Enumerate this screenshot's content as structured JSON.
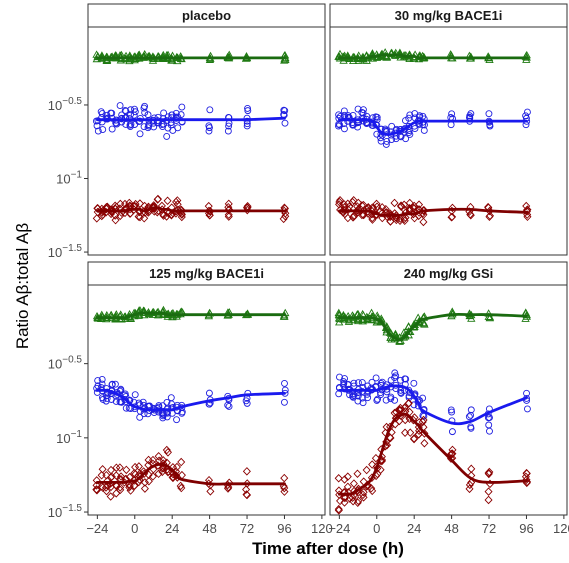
{
  "chart_data": {
    "type": "scatter",
    "xlabel": "Time after dose (h)",
    "ylabel": "Ratio Aβ:total Aβ",
    "x_ticks": [
      -24,
      0,
      24,
      48,
      72,
      96,
      120
    ],
    "x_tick_labels": [
      "−24",
      "0",
      "24",
      "48",
      "72",
      "96",
      "120"
    ],
    "xlim": [
      -30,
      122
    ],
    "y_scale": "log10",
    "ylim_log10": [
      -1.52,
      0.03
    ],
    "y_ticks": [
      {
        "log10": -0.5,
        "base": "10",
        "exp": "−0.5"
      },
      {
        "log10": -1.0,
        "base": "10",
        "exp": "−1"
      },
      {
        "log10": -1.5,
        "base": "10",
        "exp": "−1.5"
      }
    ],
    "grid": false,
    "legend": "none",
    "series_styles": [
      {
        "key": "green",
        "marker": "triangle",
        "color": "#1f7a12",
        "line_color": "#1a6b10"
      },
      {
        "key": "blue",
        "marker": "circle",
        "color": "#1f1fe0",
        "line_color": "#1a1aee"
      },
      {
        "key": "red",
        "marker": "diamond",
        "color": "#8b0000",
        "line_color": "#7f0000"
      }
    ],
    "timepoints": [
      -24,
      -21,
      -18,
      -15,
      -12,
      -9,
      -6,
      -3,
      0,
      3,
      6,
      9,
      12,
      15,
      18,
      21,
      24,
      27,
      30,
      48,
      60,
      72,
      96
    ],
    "panels": [
      {
        "title": "placebo",
        "series": [
          {
            "key": "green",
            "values": [
              -0.18,
              -0.18,
              -0.18,
              -0.18,
              -0.18,
              -0.18,
              -0.18,
              -0.18,
              -0.18,
              -0.18,
              -0.18,
              -0.18,
              -0.18,
              -0.18,
              -0.18,
              -0.18,
              -0.18,
              -0.18,
              -0.18,
              -0.18,
              -0.18,
              -0.18,
              -0.18
            ],
            "spread": 0.03
          },
          {
            "key": "blue",
            "values": [
              -0.6,
              -0.6,
              -0.6,
              -0.6,
              -0.6,
              -0.6,
              -0.6,
              -0.6,
              -0.6,
              -0.6,
              -0.6,
              -0.6,
              -0.6,
              -0.6,
              -0.6,
              -0.6,
              -0.6,
              -0.6,
              -0.6,
              -0.6,
              -0.6,
              -0.6,
              -0.59
            ],
            "spread": 0.12
          },
          {
            "key": "red",
            "values": [
              -1.22,
              -1.22,
              -1.22,
              -1.22,
              -1.22,
              -1.22,
              -1.22,
              -1.21,
              -1.21,
              -1.21,
              -1.22,
              -1.21,
              -1.2,
              -1.2,
              -1.21,
              -1.21,
              -1.22,
              -1.22,
              -1.22,
              -1.22,
              -1.22,
              -1.22,
              -1.22
            ],
            "spread": 0.09
          }
        ]
      },
      {
        "title": "30 mg/kg BACE1i",
        "series": [
          {
            "key": "green",
            "values": [
              -0.18,
              -0.18,
              -0.18,
              -0.18,
              -0.18,
              -0.18,
              -0.18,
              -0.17,
              -0.17,
              -0.16,
              -0.16,
              -0.16,
              -0.16,
              -0.16,
              -0.17,
              -0.17,
              -0.17,
              -0.18,
              -0.18,
              -0.18,
              -0.18,
              -0.18,
              -0.18
            ],
            "spread": 0.03
          },
          {
            "key": "blue",
            "values": [
              -0.6,
              -0.6,
              -0.6,
              -0.6,
              -0.6,
              -0.6,
              -0.6,
              -0.61,
              -0.65,
              -0.69,
              -0.7,
              -0.7,
              -0.69,
              -0.68,
              -0.66,
              -0.64,
              -0.62,
              -0.61,
              -0.61,
              -0.61,
              -0.61,
              -0.61,
              -0.61
            ],
            "spread": 0.1
          },
          {
            "key": "red",
            "values": [
              -1.22,
              -1.22,
              -1.22,
              -1.22,
              -1.22,
              -1.22,
              -1.22,
              -1.23,
              -1.24,
              -1.25,
              -1.25,
              -1.25,
              -1.25,
              -1.25,
              -1.24,
              -1.24,
              -1.24,
              -1.23,
              -1.22,
              -1.21,
              -1.21,
              -1.22,
              -1.23
            ],
            "spread": 0.1
          }
        ]
      },
      {
        "title": "125 mg/kg BACE1i",
        "series": [
          {
            "key": "green",
            "values": [
              -0.19,
              -0.19,
              -0.19,
              -0.19,
              -0.19,
              -0.19,
              -0.19,
              -0.18,
              -0.17,
              -0.16,
              -0.16,
              -0.16,
              -0.16,
              -0.16,
              -0.16,
              -0.17,
              -0.17,
              -0.17,
              -0.17,
              -0.17,
              -0.17,
              -0.17,
              -0.17
            ],
            "spread": 0.03
          },
          {
            "key": "blue",
            "values": [
              -0.68,
              -0.68,
              -0.68,
              -0.69,
              -0.7,
              -0.72,
              -0.74,
              -0.77,
              -0.79,
              -0.8,
              -0.81,
              -0.81,
              -0.81,
              -0.81,
              -0.81,
              -0.81,
              -0.81,
              -0.8,
              -0.79,
              -0.75,
              -0.73,
              -0.71,
              -0.7
            ],
            "spread": 0.1
          },
          {
            "key": "red",
            "values": [
              -1.3,
              -1.3,
              -1.3,
              -1.3,
              -1.3,
              -1.3,
              -1.3,
              -1.29,
              -1.29,
              -1.27,
              -1.24,
              -1.21,
              -1.19,
              -1.18,
              -1.18,
              -1.19,
              -1.22,
              -1.25,
              -1.28,
              -1.31,
              -1.31,
              -1.31,
              -1.31
            ],
            "spread": 0.13
          }
        ]
      },
      {
        "title": "240 mg/kg GSi",
        "series": [
          {
            "key": "green",
            "values": [
              -0.19,
              -0.19,
              -0.19,
              -0.19,
              -0.19,
              -0.19,
              -0.19,
              -0.19,
              -0.2,
              -0.22,
              -0.27,
              -0.31,
              -0.33,
              -0.34,
              -0.32,
              -0.28,
              -0.25,
              -0.22,
              -0.2,
              -0.17,
              -0.17,
              -0.17,
              -0.18
            ],
            "spread": 0.05
          },
          {
            "key": "blue",
            "values": [
              -0.68,
              -0.68,
              -0.68,
              -0.68,
              -0.68,
              -0.68,
              -0.68,
              -0.68,
              -0.68,
              -0.67,
              -0.66,
              -0.65,
              -0.65,
              -0.65,
              -0.66,
              -0.68,
              -0.72,
              -0.77,
              -0.82,
              -0.9,
              -0.89,
              -0.83,
              -0.73
            ],
            "spread": 0.14
          },
          {
            "key": "red",
            "values": [
              -1.38,
              -1.38,
              -1.38,
              -1.37,
              -1.35,
              -1.33,
              -1.31,
              -1.27,
              -1.2,
              -1.1,
              -1.0,
              -0.92,
              -0.87,
              -0.85,
              -0.84,
              -0.86,
              -0.89,
              -0.92,
              -0.96,
              -1.15,
              -1.27,
              -1.3,
              -1.29
            ],
            "spread": 0.18
          }
        ]
      }
    ]
  }
}
